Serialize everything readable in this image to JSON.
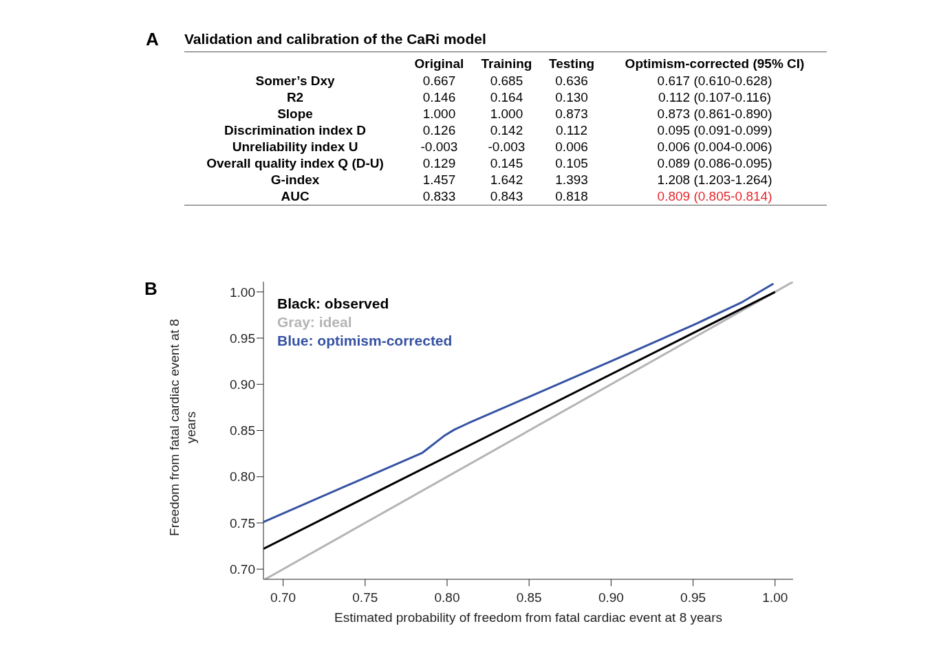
{
  "chart_data": [
    {
      "type": "other",
      "title": "Validation and calibration of the CaRi model",
      "annotations": [
        "A"
      ],
      "categories": [
        "Original",
        "Training",
        "Testing",
        "Optimism-corrected (95% CI)"
      ],
      "y_categories": [
        "Somer’s Dxy",
        "R2",
        "Slope",
        "Discrimination index D",
        "Unreliability index U",
        "Overall quality index Q (D-U)",
        "G-index",
        "AUC"
      ],
      "cell_labels": [
        [
          "0.667",
          "0.685",
          "0.636",
          "0.617 (0.610-0.628)"
        ],
        [
          "0.146",
          "0.164",
          "0.130",
          "0.112 (0.107-0.116)"
        ],
        [
          "1.000",
          "1.000",
          "0.873",
          "0.873 (0.861-0.890)"
        ],
        [
          "0.126",
          "0.142",
          "0.112",
          "0.095 (0.091-0.099)"
        ],
        [
          "-0.003",
          "-0.003",
          "0.006",
          "0.006 (0.004-0.006)"
        ],
        [
          "0.129",
          "0.145",
          "0.105",
          "0.089 (0.086-0.095)"
        ],
        [
          "1.457",
          "1.642",
          "1.393",
          "1.208 (1.203-1.264)"
        ],
        [
          "0.833",
          "0.843",
          "0.818",
          "0.809 (0.805-0.814)"
        ]
      ]
    },
    {
      "type": "line",
      "annotations": [
        "B"
      ],
      "xlabel": "Estimated probability of freedom from fatal cardiac event at 8 years",
      "ylabel": "Freedom from fatal cardiac event at 8 years",
      "xlim": [
        0.688,
        1.011
      ],
      "ylim": [
        0.689,
        1.011
      ],
      "xticks": [
        {
          "value": 0.7,
          "label": "0.70"
        },
        {
          "value": 0.75,
          "label": "0.75"
        },
        {
          "value": 0.8,
          "label": "0.80"
        },
        {
          "value": 0.85,
          "label": "0.85"
        },
        {
          "value": 0.9,
          "label": "0.90"
        },
        {
          "value": 0.95,
          "label": "0.95"
        },
        {
          "value": 1.0,
          "label": "1.00"
        }
      ],
      "yticks": [
        {
          "value": 0.7,
          "label": "0.70"
        },
        {
          "value": 0.75,
          "label": "0.75"
        },
        {
          "value": 0.8,
          "label": "0.80"
        },
        {
          "value": 0.85,
          "label": "0.85"
        },
        {
          "value": 0.9,
          "label": "0.90"
        },
        {
          "value": 0.95,
          "label": "0.95"
        },
        {
          "value": 1.0,
          "label": "1.00"
        }
      ],
      "legend": "top left",
      "marker": "none",
      "line_style": "solid",
      "series": [
        {
          "name": "Gray: ideal",
          "color": "#b4b4b4",
          "x": [
            0.689,
            1.011
          ],
          "values": [
            0.689,
            1.011
          ]
        },
        {
          "name": "Black: observed",
          "color": "#000000",
          "x": [
            0.688,
            1.0
          ],
          "values": [
            0.722,
            1.0
          ]
        },
        {
          "name": "Blue: optimism-corrected",
          "color": "#3552a3",
          "x": [
            0.688,
            0.785,
            0.798,
            0.8045,
            0.813,
            0.9,
            0.95,
            0.98,
            0.999
          ],
          "values": [
            0.751,
            0.826,
            0.844,
            0.851,
            0.858,
            0.925,
            0.964,
            0.989,
            1.009
          ]
        }
      ]
    }
  ]
}
